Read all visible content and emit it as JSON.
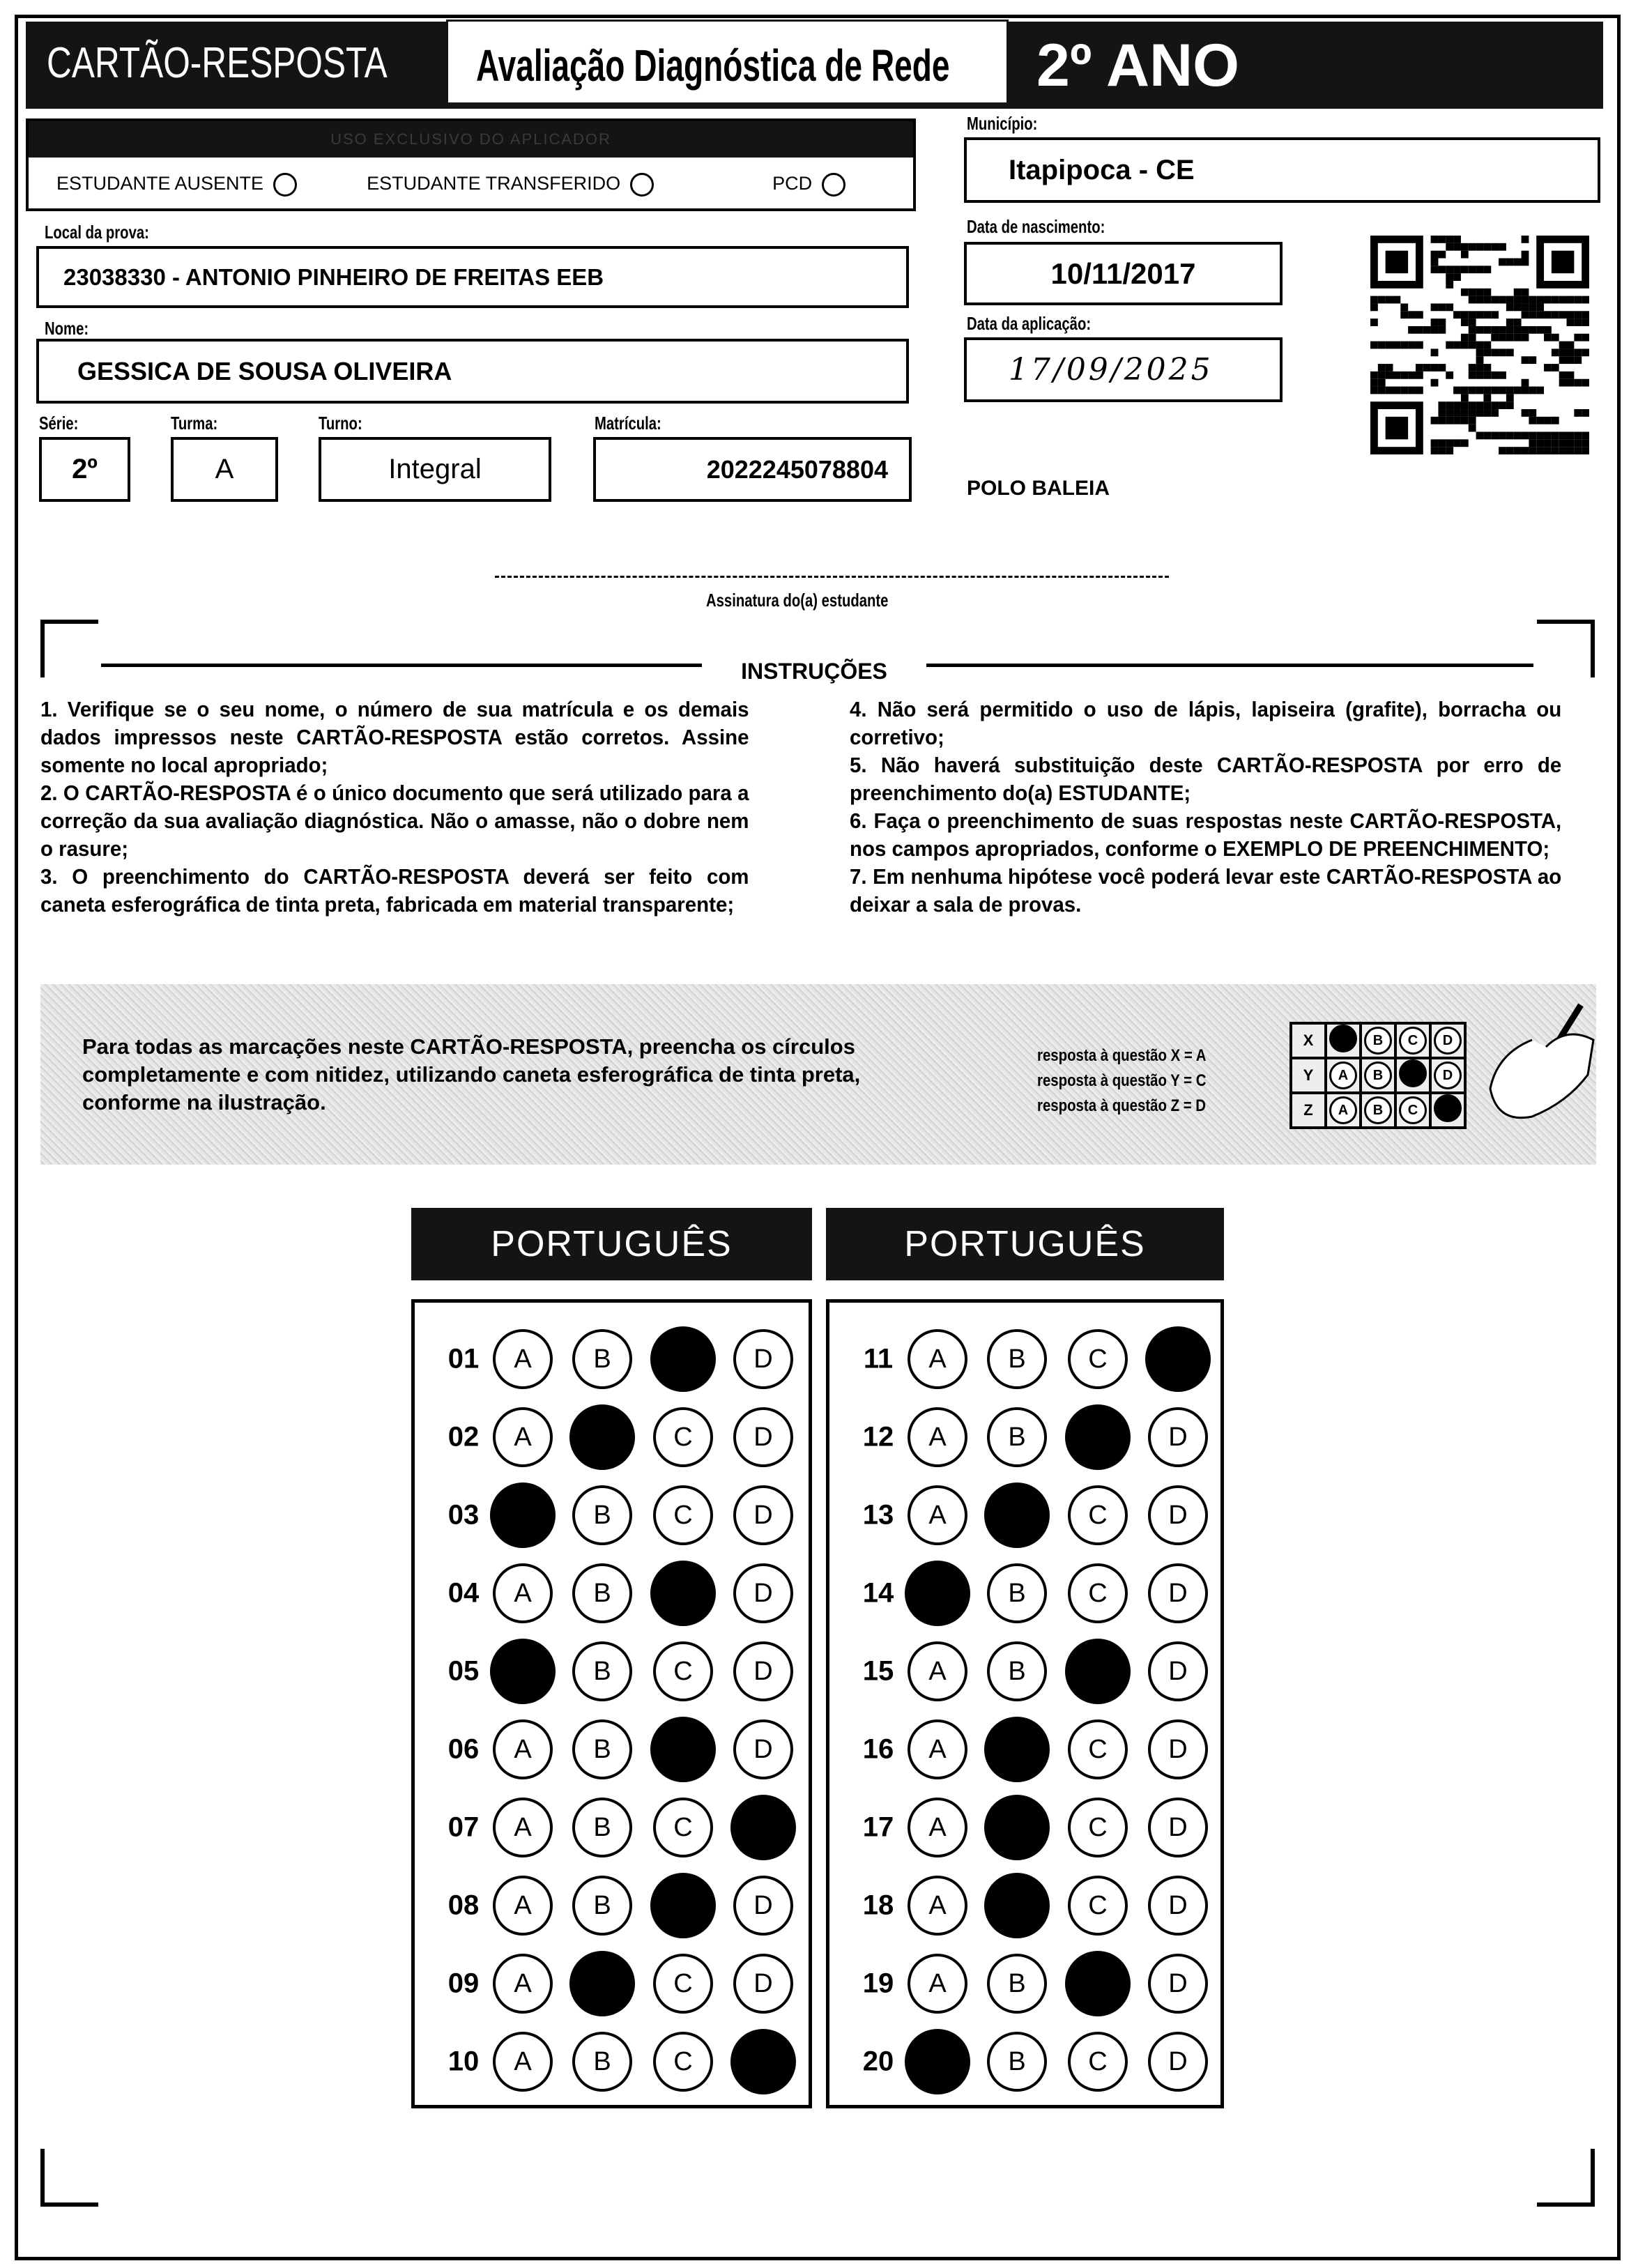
{
  "header": {
    "left_title": "CARTÃO-RESPOSTA",
    "center_title": "Avaliação Diagnóstica de Rede",
    "grade": "2º ANO"
  },
  "aplicador": {
    "title": "USO EXCLUSIVO DO APLICADOR",
    "options": [
      "ESTUDANTE AUSENTE",
      "ESTUDANTE TRANSFERIDO",
      "PCD"
    ]
  },
  "fields": {
    "local_label": "Local da prova:",
    "local_value": "23038330 - ANTONIO PINHEIRO DE FREITAS EEB",
    "nome_label": "Nome:",
    "nome_value": "GESSICA DE SOUSA OLIVEIRA",
    "serie_label": "Série:",
    "serie_value": "2º",
    "turma_label": "Turma:",
    "turma_value": "A",
    "turno_label": "Turno:",
    "turno_value": "Integral",
    "matricula_label": "Matrícula:",
    "matricula_value": "2022245078804",
    "municipio_label": "Município:",
    "municipio_value": "Itapipoca - CE",
    "nascimento_label": "Data de nascimento:",
    "nascimento_value": "10/11/2017",
    "aplicacao_label": "Data da aplicação:",
    "aplicacao_value": "17/09/2025",
    "polo": "POLO BALEIA"
  },
  "signature_label": "Assinatura do(a) estudante",
  "instructions": {
    "title": "INSTRUÇÕES",
    "col1": [
      "1. Verifique se o seu nome, o número de sua matrícula e os demais dados impressos neste CARTÃO-RESPOSTA estão corretos. Assine somente no local apropriado;",
      "2. O CARTÃO-RESPOSTA é o único documento que será utilizado para a correção da sua avaliação diagnóstica. Não o amasse, não o dobre nem o rasure;",
      "3. O preenchimento do CARTÃO-RESPOSTA deverá ser feito com caneta esferográfica de tinta preta, fabricada em material transparente;"
    ],
    "col2": [
      "4. Não será permitido o uso de lápis, lapiseira (grafite), borracha ou corretivo;",
      "5. Não haverá substituição deste CARTÃO-RESPOSTA por erro de preenchimento do(a) ESTUDANTE;",
      "6. Faça o preenchimento de suas respostas neste CARTÃO-RESPOSTA, nos campos apropriados, conforme o EXEMPLO DE PREENCHIMENTO;",
      "7. Em nenhuma hipótese você poderá levar este CARTÃO-RESPOSTA ao deixar a sala de provas."
    ]
  },
  "example": {
    "text": "Para todas as marcações neste CARTÃO-RESPOSTA, preencha os círculos completamente e com nitidez, utilizando caneta esferográfica de tinta preta, conforme na ilustração.",
    "legend": [
      "resposta à questão X = A",
      "resposta à questão Y = C",
      "resposta à questão Z = D"
    ],
    "rows": [
      {
        "q": "X",
        "marked": "A"
      },
      {
        "q": "Y",
        "marked": "C"
      },
      {
        "q": "Z",
        "marked": "D"
      }
    ]
  },
  "options": [
    "A",
    "B",
    "C",
    "D"
  ],
  "sections": [
    {
      "subject": "PORTUGUÊS",
      "questions": [
        {
          "n": "01",
          "marked": "C"
        },
        {
          "n": "02",
          "marked": "B"
        },
        {
          "n": "03",
          "marked": "A"
        },
        {
          "n": "04",
          "marked": "C"
        },
        {
          "n": "05",
          "marked": "A"
        },
        {
          "n": "06",
          "marked": "C"
        },
        {
          "n": "07",
          "marked": "D"
        },
        {
          "n": "08",
          "marked": "C"
        },
        {
          "n": "09",
          "marked": "B"
        },
        {
          "n": "10",
          "marked": "D"
        }
      ]
    },
    {
      "subject": "PORTUGUÊS",
      "questions": [
        {
          "n": "11",
          "marked": "D"
        },
        {
          "n": "12",
          "marked": "C"
        },
        {
          "n": "13",
          "marked": "B"
        },
        {
          "n": "14",
          "marked": "A"
        },
        {
          "n": "15",
          "marked": "C"
        },
        {
          "n": "16",
          "marked": "B"
        },
        {
          "n": "17",
          "marked": "B"
        },
        {
          "n": "18",
          "marked": "B"
        },
        {
          "n": "19",
          "marked": "C"
        },
        {
          "n": "20",
          "marked": "A"
        }
      ]
    }
  ]
}
